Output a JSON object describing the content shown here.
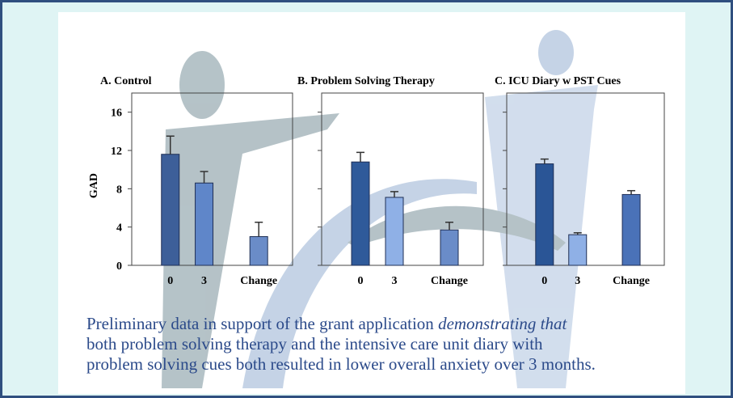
{
  "chart_data": [
    {
      "type": "bar",
      "title": "A. Control",
      "ylabel": "GAD",
      "categories": [
        "0",
        "3",
        "Change"
      ],
      "values": [
        11.6,
        8.6,
        3.0
      ],
      "errors": [
        1.9,
        1.2,
        1.5
      ],
      "colors": [
        "#3d5f99",
        "#5f86c9",
        "#6a8cc8"
      ],
      "ylim": [
        0,
        18
      ],
      "yticks": [
        0,
        4,
        8,
        12,
        16
      ],
      "tick_labels": true
    },
    {
      "type": "bar",
      "title": "B. Problem Solving Therapy",
      "categories": [
        "0",
        "3",
        "Change"
      ],
      "values": [
        10.8,
        7.1,
        3.7
      ],
      "errors": [
        1.0,
        0.6,
        0.8
      ],
      "colors": [
        "#2f5a9a",
        "#8fb0e6",
        "#6a8cc8"
      ],
      "ylim": [
        0,
        18
      ],
      "yticks": [
        0,
        4,
        8,
        12,
        16
      ],
      "tick_labels": false
    },
    {
      "type": "bar",
      "title": "C. ICU Diary w PST Cues",
      "categories": [
        "0",
        "3",
        "Change"
      ],
      "values": [
        10.6,
        3.2,
        7.4
      ],
      "errors": [
        0.5,
        0.2,
        0.4
      ],
      "colors": [
        "#2a5596",
        "#8fb0e6",
        "#4a72b8"
      ],
      "ylim": [
        0,
        18
      ],
      "yticks": [
        0,
        4,
        8,
        12,
        16
      ],
      "tick_labels": false
    }
  ],
  "caption": [
    "Preliminary data in support of the grant application ",
    "demonstrating that",
    "both problem solving therapy and the intensive care unit diary with",
    "problem solving cues both resulted in lower overall anxiety over 3 months."
  ]
}
